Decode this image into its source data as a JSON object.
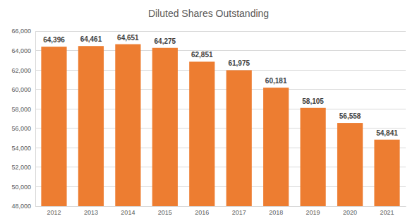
{
  "chart_data": {
    "type": "bar",
    "title": "Diluted Shares Outstanding",
    "categories": [
      "2012",
      "2013",
      "2014",
      "2015",
      "2016",
      "2017",
      "2018",
      "2019",
      "2020",
      "2021"
    ],
    "values": [
      64396,
      64461,
      64651,
      64275,
      62851,
      61975,
      60181,
      58105,
      56558,
      54841
    ],
    "value_labels": [
      "64,396",
      "64,461",
      "64,651",
      "64,275",
      "62,851",
      "61,975",
      "60,181",
      "58,105",
      "56,558",
      "54,841"
    ],
    "color": "#ed7d31",
    "ylim": [
      48000,
      66000
    ],
    "yticks": [
      {
        "value": 48000,
        "label": "48,000"
      },
      {
        "value": 50000,
        "label": "50,000"
      },
      {
        "value": 52000,
        "label": "52,000"
      },
      {
        "value": 54000,
        "label": "54,000"
      },
      {
        "value": 56000,
        "label": "56,000"
      },
      {
        "value": 58000,
        "label": "58,000"
      },
      {
        "value": 60000,
        "label": "60,000"
      },
      {
        "value": 62000,
        "label": "62,000"
      },
      {
        "value": 64000,
        "label": "64,000"
      },
      {
        "value": 66000,
        "label": "66,000"
      }
    ],
    "grid": true,
    "data_labels": true
  }
}
